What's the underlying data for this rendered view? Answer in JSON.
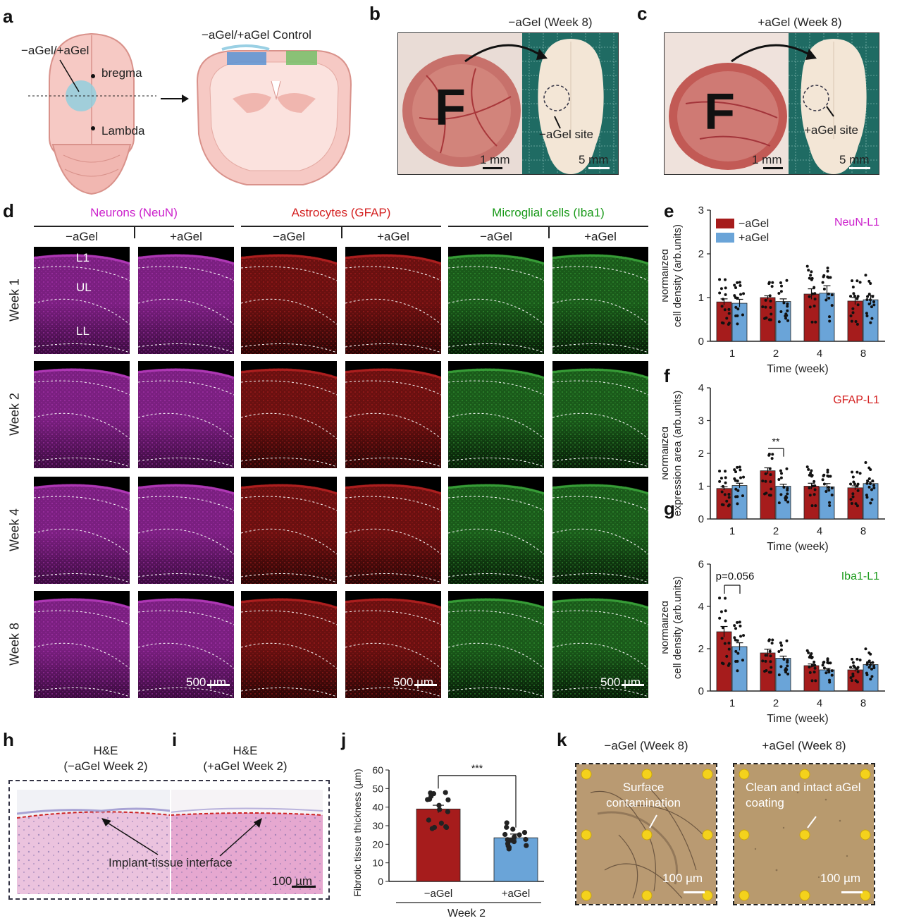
{
  "panels": {
    "a": "a",
    "b": "b",
    "c": "c",
    "d": "d",
    "e": "e",
    "f": "f",
    "g": "g",
    "h": "h",
    "i": "i",
    "j": "j",
    "k": "k"
  },
  "panel_a": {
    "site": "−aGel/+aGel",
    "bregma": "bregma",
    "lambda": "Lambda",
    "coronal_title": "−aGel/+aGel  Control"
  },
  "panel_b": {
    "title": "−aGel (Week 8)",
    "letter": "F",
    "scale1": "1 mm",
    "scale2": "5 mm",
    "site": "−aGel site"
  },
  "panel_c": {
    "title": "+aGel (Week 8)",
    "letter": "F",
    "scale1": "1 mm",
    "scale2": "5 mm",
    "site": "+aGel site"
  },
  "panel_d": {
    "groups": [
      {
        "title": "Neurons (NeuN)",
        "color": "#cc22cc"
      },
      {
        "title": "Astrocytes (GFAP)",
        "color": "#d42020"
      },
      {
        "title": "Microglial cells (Iba1)",
        "color": "#1a9a1a"
      }
    ],
    "conditions": [
      "−aGel",
      "+aGel"
    ],
    "weeks": [
      "Week 1",
      "Week 2",
      "Week 4",
      "Week 8"
    ],
    "layers": [
      "L1",
      "UL",
      "LL"
    ],
    "scale": "500 µm"
  },
  "chart_data": [
    {
      "id": "e",
      "type": "bar",
      "title": "NeuN-L1",
      "title_color": "#cc22cc",
      "categories": [
        "1",
        "2",
        "4",
        "8"
      ],
      "xlabel": "Time (week)",
      "ylabel": "Normalized cell density (arb.units)",
      "ylim": [
        0,
        3
      ],
      "yticks": [
        "0",
        "1",
        "2",
        "3"
      ],
      "series": [
        {
          "name": "−aGel",
          "color": "#a61c1c",
          "values": [
            0.9,
            1.0,
            1.08,
            0.92
          ]
        },
        {
          "name": "+aGel",
          "color": "#6aa4d8",
          "values": [
            0.87,
            0.91,
            1.1,
            0.95
          ]
        }
      ],
      "errors": [
        [
          0.07,
          0.04,
          0.12,
          0.08
        ],
        [
          0.09,
          0.06,
          0.17,
          0.1
        ]
      ]
    },
    {
      "id": "f",
      "type": "bar",
      "title": "GFAP-L1",
      "title_color": "#d42020",
      "categories": [
        "1",
        "2",
        "4",
        "8"
      ],
      "xlabel": "Time (week)",
      "ylabel": "Normalized expression area (arb.units)",
      "ylim": [
        0,
        4
      ],
      "yticks": [
        "0",
        "1",
        "2",
        "3",
        "4"
      ],
      "series": [
        {
          "name": "−aGel",
          "color": "#a61c1c",
          "values": [
            0.93,
            1.47,
            1.0,
            0.95
          ]
        },
        {
          "name": "+aGel",
          "color": "#6aa4d8",
          "values": [
            1.02,
            1.0,
            0.98,
            1.08
          ]
        }
      ],
      "errors": [
        [
          0.05,
          0.09,
          0.09,
          0.06
        ],
        [
          0.07,
          0.06,
          0.1,
          0.05
        ]
      ],
      "annotation": "**"
    },
    {
      "id": "g",
      "type": "bar",
      "title": "Iba1-L1",
      "title_color": "#1a9a1a",
      "categories": [
        "1",
        "2",
        "4",
        "8"
      ],
      "xlabel": "Time (week)",
      "ylabel": "Normalized cell density (arb.units)",
      "ylim": [
        0,
        6
      ],
      "yticks": [
        "0",
        "2",
        "4",
        "6"
      ],
      "series": [
        {
          "name": "−aGel",
          "color": "#a61c1c",
          "values": [
            2.8,
            1.8,
            1.2,
            1.0
          ]
        },
        {
          "name": "+aGel",
          "color": "#6aa4d8",
          "values": [
            2.1,
            1.55,
            1.0,
            1.25
          ]
        }
      ],
      "errors": [
        [
          0.25,
          0.18,
          0.08,
          0.08
        ],
        [
          0.18,
          0.1,
          0.07,
          0.1
        ]
      ],
      "annotation": "p=0.056"
    },
    {
      "id": "j",
      "type": "bar",
      "title": "",
      "categories": [
        "−aGel",
        "+aGel"
      ],
      "xlabel": "Week 2",
      "ylabel": "Fibrotic tissue thickness (µm)",
      "ylim": [
        0,
        60
      ],
      "yticks": [
        "0",
        "10",
        "20",
        "30",
        "40",
        "50",
        "60"
      ],
      "series": [
        {
          "name": "thickness",
          "values": [
            39,
            23.5
          ]
        }
      ],
      "colors": [
        "#a61c1c",
        "#6aa4d8"
      ],
      "errors": [
        2,
        2
      ],
      "annotation": "***"
    }
  ],
  "panel_h": {
    "title1": "H&E",
    "title2": "(−aGel  Week 2)"
  },
  "panel_i": {
    "title1": "H&E",
    "title2": "(+aGel  Week 2)"
  },
  "panel_hi": {
    "interface": "Implant-tissue  interface",
    "scale": "100 µm"
  },
  "panel_k": {
    "title_left": "−aGel (Week 8)",
    "title_right": "+aGel (Week 8)",
    "note_left": "Surface contamination",
    "note_right": "Clean and intact aGel coating",
    "scale": "100 µm"
  }
}
